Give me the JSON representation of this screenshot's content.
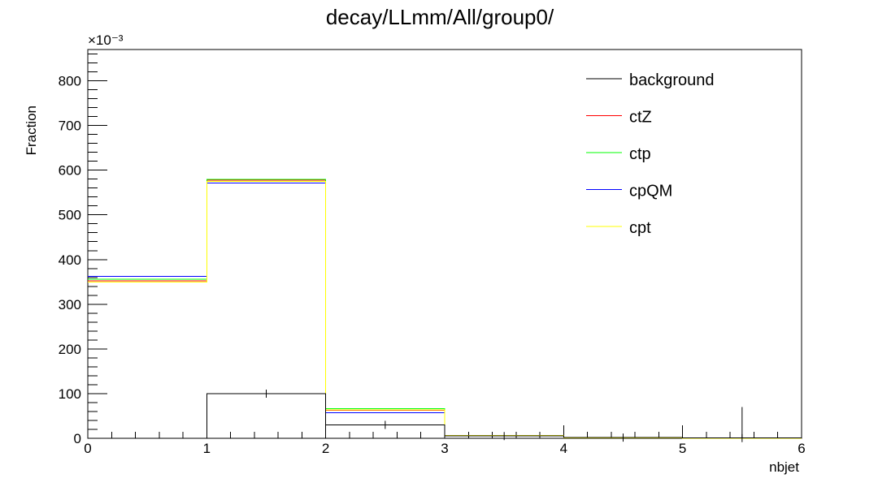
{
  "chart_data": {
    "type": "histogram",
    "title": "decay/LLmm/All/group0/",
    "xlabel": "nbjet",
    "ylabel": "Fraction",
    "y_exponent_label": "×10⁻³",
    "xlim": [
      0,
      6
    ],
    "ylim": [
      0,
      870
    ],
    "x_ticks": [
      "0",
      "1",
      "2",
      "3",
      "4",
      "5",
      "6"
    ],
    "y_ticks": [
      "0",
      "100",
      "200",
      "300",
      "400",
      "500",
      "600",
      "700",
      "800"
    ],
    "bin_edges": [
      0,
      1,
      2,
      3,
      4,
      5,
      6
    ],
    "legend_position": "top-right",
    "series": [
      {
        "name": "background",
        "color": "#000000",
        "values": [
          0,
          100,
          30,
          5,
          1.5,
          0.5
        ],
        "errors": [
          0,
          0,
          0,
          0,
          0,
          0
        ]
      },
      {
        "name": "ctZ",
        "color": "#ff0000",
        "values": [
          352,
          578,
          63,
          6,
          1,
          0
        ]
      },
      {
        "name": "ctp",
        "color": "#00ff00",
        "values": [
          356,
          579,
          66,
          6,
          1,
          0
        ]
      },
      {
        "name": "cpQM",
        "color": "#0000ff",
        "values": [
          362,
          571,
          57,
          5,
          1,
          0
        ]
      },
      {
        "name": "cpt",
        "color": "#ffff00",
        "values": [
          350,
          575,
          64,
          6,
          1,
          0
        ]
      }
    ],
    "annotations": [
      {
        "type": "vertical-line",
        "x": 5.5,
        "y_top": 70,
        "color": "#000000"
      }
    ]
  }
}
